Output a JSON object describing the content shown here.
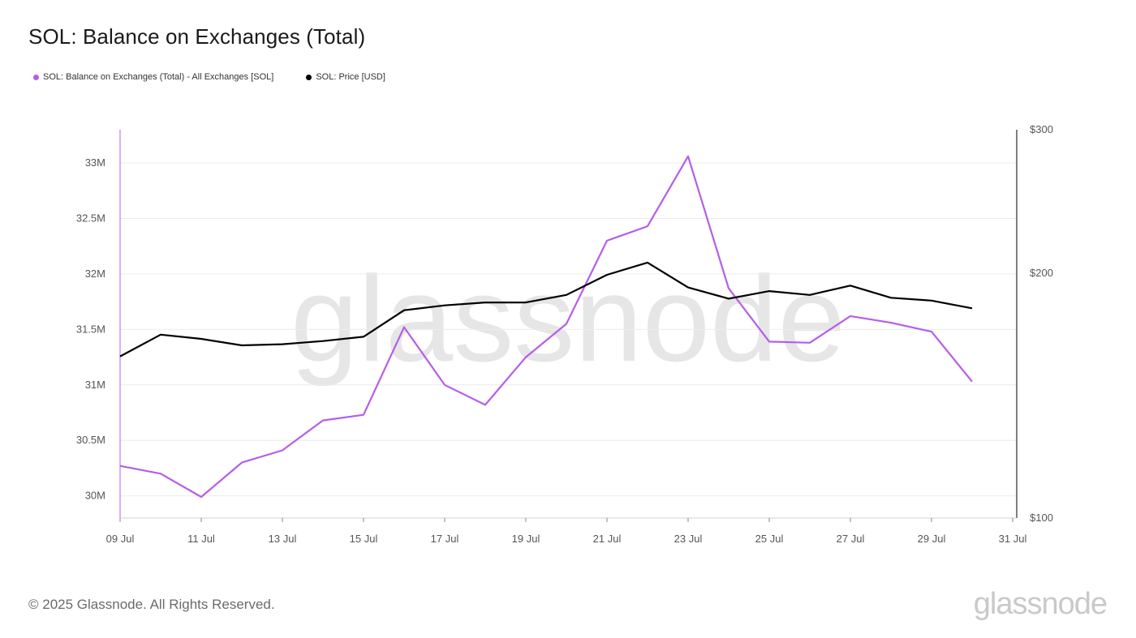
{
  "title": "SOL: Balance on Exchanges (Total)",
  "legend": [
    {
      "label": "SOL: Balance on Exchanges (Total) - All Exchanges [SOL]",
      "color": "#b65ee8"
    },
    {
      "label": "SOL: Price [USD]",
      "color": "#000000"
    }
  ],
  "watermark": "glassnode",
  "footer": "© 2025 Glassnode. All Rights Reserved.",
  "brand": "glassnode",
  "chart_data": {
    "type": "line",
    "title": "SOL: Balance on Exchanges (Total)",
    "x": [
      "09 Jul",
      "10 Jul",
      "11 Jul",
      "12 Jul",
      "13 Jul",
      "14 Jul",
      "15 Jul",
      "16 Jul",
      "17 Jul",
      "18 Jul",
      "19 Jul",
      "20 Jul",
      "21 Jul",
      "22 Jul",
      "23 Jul",
      "24 Jul",
      "25 Jul",
      "26 Jul",
      "27 Jul",
      "28 Jul",
      "29 Jul",
      "30 Jul"
    ],
    "x_ticks": [
      "09 Jul",
      "11 Jul",
      "13 Jul",
      "15 Jul",
      "17 Jul",
      "19 Jul",
      "21 Jul",
      "23 Jul",
      "25 Jul",
      "27 Jul",
      "29 Jul",
      "31 Jul"
    ],
    "y_left": {
      "ticks": [
        "30M",
        "30.5M",
        "31M",
        "31.5M",
        "32M",
        "32.5M",
        "33M"
      ],
      "tick_values": [
        30.0,
        30.5,
        31.0,
        31.5,
        32.0,
        32.5,
        33.0
      ],
      "range": [
        29.8,
        33.3
      ],
      "unit": "M SOL"
    },
    "y_right": {
      "ticks": [
        "$100",
        "$200",
        "$300"
      ],
      "tick_values": [
        100,
        200,
        300
      ],
      "range": [
        100,
        300
      ],
      "scale": "log"
    },
    "grid": true,
    "series": [
      {
        "name": "SOL: Balance on Exchanges (Total) - All Exchanges [SOL]",
        "axis": "left",
        "color": "#b65ee8",
        "values": [
          30.27,
          30.2,
          29.99,
          30.3,
          30.41,
          30.68,
          30.73,
          31.52,
          31.0,
          30.82,
          31.25,
          31.55,
          32.3,
          32.43,
          33.06,
          31.87,
          31.39,
          31.38,
          31.62,
          31.56,
          31.48,
          31.03
        ]
      },
      {
        "name": "SOL: Price [USD]",
        "axis": "right",
        "color": "#000000",
        "values": [
          158,
          168,
          166,
          163,
          163.5,
          165,
          167,
          180,
          182.5,
          184,
          184,
          188,
          199,
          206,
          192,
          186,
          190,
          188,
          193,
          186.5,
          185,
          181
        ]
      }
    ]
  }
}
